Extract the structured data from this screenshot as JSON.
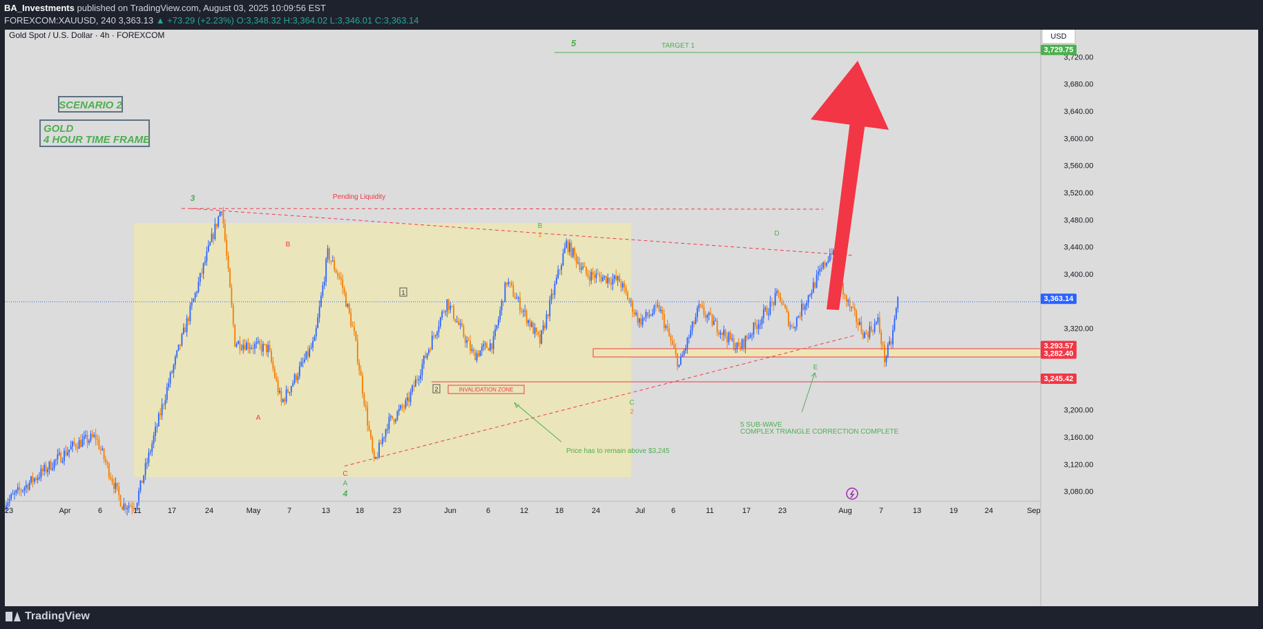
{
  "header": {
    "publisher": "BA_Investments",
    "published_text": "published on TradingView.com, August 03, 2025 10:09:56 EST",
    "symbol_line": "FOREXCOM:XAUUSD, 240",
    "last": "3,363.13",
    "change": "▲ +73.29 (+2.23%)",
    "ohlc": "O:3,348.32 H:3,364.02 L:3,346.01 C:3,363.14"
  },
  "chart_title": "Gold Spot / U.S. Dollar · 4h · FOREXCOM",
  "currency_button": "USD",
  "footer_brand": "TradingView",
  "colors": {
    "up": "#2962ff",
    "down": "#f57c00",
    "red": "#f23645",
    "green": "#4caf50",
    "zone": "#ece6b4",
    "plot_bg": "#dcdcdc"
  },
  "chart_data": {
    "type": "candlestick",
    "ylim": [
      3060,
      3760
    ],
    "price_ticks": [
      3720,
      3680,
      3640,
      3600,
      3560,
      3520,
      3480,
      3440,
      3400,
      3320,
      3200,
      3160,
      3120,
      3080
    ],
    "x_labels": [
      "23",
      "Apr",
      "6",
      "11",
      "17",
      "24",
      "May",
      "7",
      "13",
      "18",
      "23",
      "Jun",
      "6",
      "12",
      "18",
      "24",
      "Jul",
      "6",
      "11",
      "17",
      "23",
      "Aug",
      "7",
      "13",
      "19",
      "24",
      "Sep"
    ],
    "price_marks": [
      {
        "label": "3,729.75",
        "value": 3729.75,
        "color": "#4caf50"
      },
      {
        "label": "3,363.14",
        "value": 3363.14,
        "color": "#2962ff"
      },
      {
        "label": "3,293.57",
        "value": 3293.57,
        "color": "#f23645"
      },
      {
        "label": "3,282.40",
        "value": 3282.4,
        "color": "#f23645"
      },
      {
        "label": "3,245.42",
        "value": 3245.42,
        "color": "#f23645"
      }
    ],
    "swing_points": [
      {
        "date": "Mar 20",
        "price": 3060
      },
      {
        "date": "Mar 31",
        "price": 3150
      },
      {
        "date": "Apr 3",
        "price": 3160
      },
      {
        "date": "Apr 7",
        "price": 3060
      },
      {
        "date": "Apr 9",
        "price": 3060
      },
      {
        "date": "Apr 14",
        "price": 3240
      },
      {
        "date": "Apr 22",
        "price": 3500
      },
      {
        "date": "Apr 24",
        "price": 3300
      },
      {
        "date": "Apr 29",
        "price": 3290
      },
      {
        "date": "May 1",
        "price": 3210
      },
      {
        "date": "May 6",
        "price": 3300
      },
      {
        "date": "May 8",
        "price": 3430
      },
      {
        "date": "May 10",
        "price": 3390
      },
      {
        "date": "May 12",
        "price": 3310
      },
      {
        "date": "May 15",
        "price": 3120
      },
      {
        "date": "May 17",
        "price": 3180
      },
      {
        "date": "May 20",
        "price": 3210
      },
      {
        "date": "May 26",
        "price": 3360
      },
      {
        "date": "May 30",
        "price": 3280
      },
      {
        "date": "Jun 2",
        "price": 3300
      },
      {
        "date": "Jun 4",
        "price": 3390
      },
      {
        "date": "Jun 9",
        "price": 3300
      },
      {
        "date": "Jun 13",
        "price": 3445
      },
      {
        "date": "Jun 16",
        "price": 3400
      },
      {
        "date": "Jun 21",
        "price": 3390
      },
      {
        "date": "Jun 24",
        "price": 3330
      },
      {
        "date": "Jun 27",
        "price": 3350
      },
      {
        "date": "Jun 30",
        "price": 3265
      },
      {
        "date": "Jul 3",
        "price": 3350
      },
      {
        "date": "Jul 9",
        "price": 3290
      },
      {
        "date": "Jul 15",
        "price": 3370
      },
      {
        "date": "Jul 17",
        "price": 3320
      },
      {
        "date": "Jul 23",
        "price": 3435
      },
      {
        "date": "Jul 25",
        "price": 3365
      },
      {
        "date": "Jul 28",
        "price": 3310
      },
      {
        "date": "Jul 30",
        "price": 3330
      },
      {
        "date": "Jul 31",
        "price": 3275
      },
      {
        "date": "Aug 1",
        "price": 3300
      },
      {
        "date": "Aug 2",
        "price": 3363
      }
    ],
    "annotations": {
      "scenario": "SCENARIO 2",
      "timeframe_line1": "GOLD",
      "timeframe_line2": "4 HOUR TIME FRAME",
      "pending_liquidity": "Pending Liquidity",
      "target": "TARGET 1",
      "invalidation": "INVALIDATION ZONE",
      "price_note": "Price has to remain above $3,245",
      "subwave_line1": "5 SUB-WAVE",
      "subwave_line2": "COMPLEX TRIANGLE CORRECTION COMPLETE",
      "waves": {
        "w3": "3",
        "w4": "4",
        "w5": "5",
        "A": "A",
        "B": "B",
        "C": "C",
        "D": "D",
        "E": "E",
        "one": "1",
        "two": "2"
      }
    }
  }
}
